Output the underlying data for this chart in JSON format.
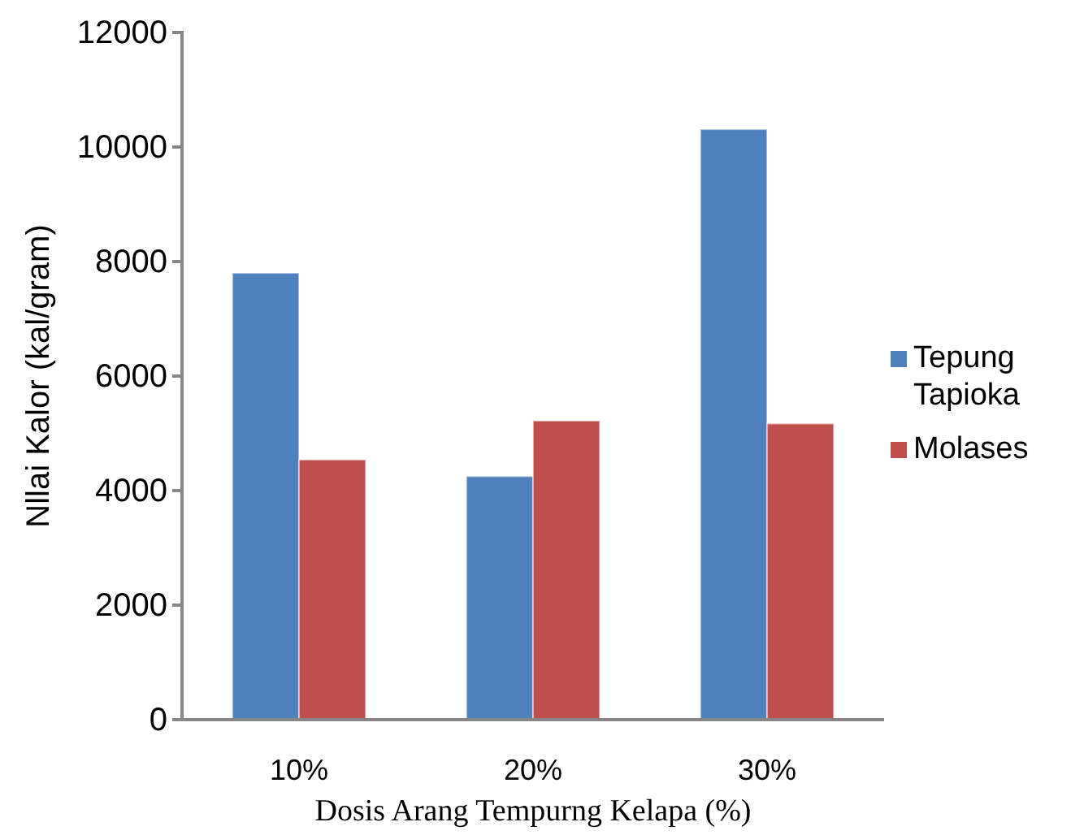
{
  "chart_data": {
    "type": "bar",
    "xlabel": "Dosis Arang Tempurng Kelapa (%)",
    "ylabel": "Nllai Kalor (kal/gram)",
    "categories": [
      "10%",
      "20%",
      "30%"
    ],
    "series": [
      {
        "name": "Tepung Tapioka",
        "color": "#4f81bd",
        "values": [
          7800,
          4250,
          10310
        ]
      },
      {
        "name": "Molases",
        "color": "#c0504d",
        "values": [
          4540,
          5220,
          5170
        ]
      }
    ],
    "ylim": [
      0,
      12000
    ],
    "yticks": [
      0,
      2000,
      4000,
      6000,
      8000,
      10000,
      12000
    ],
    "grid": false,
    "legend": "right"
  }
}
